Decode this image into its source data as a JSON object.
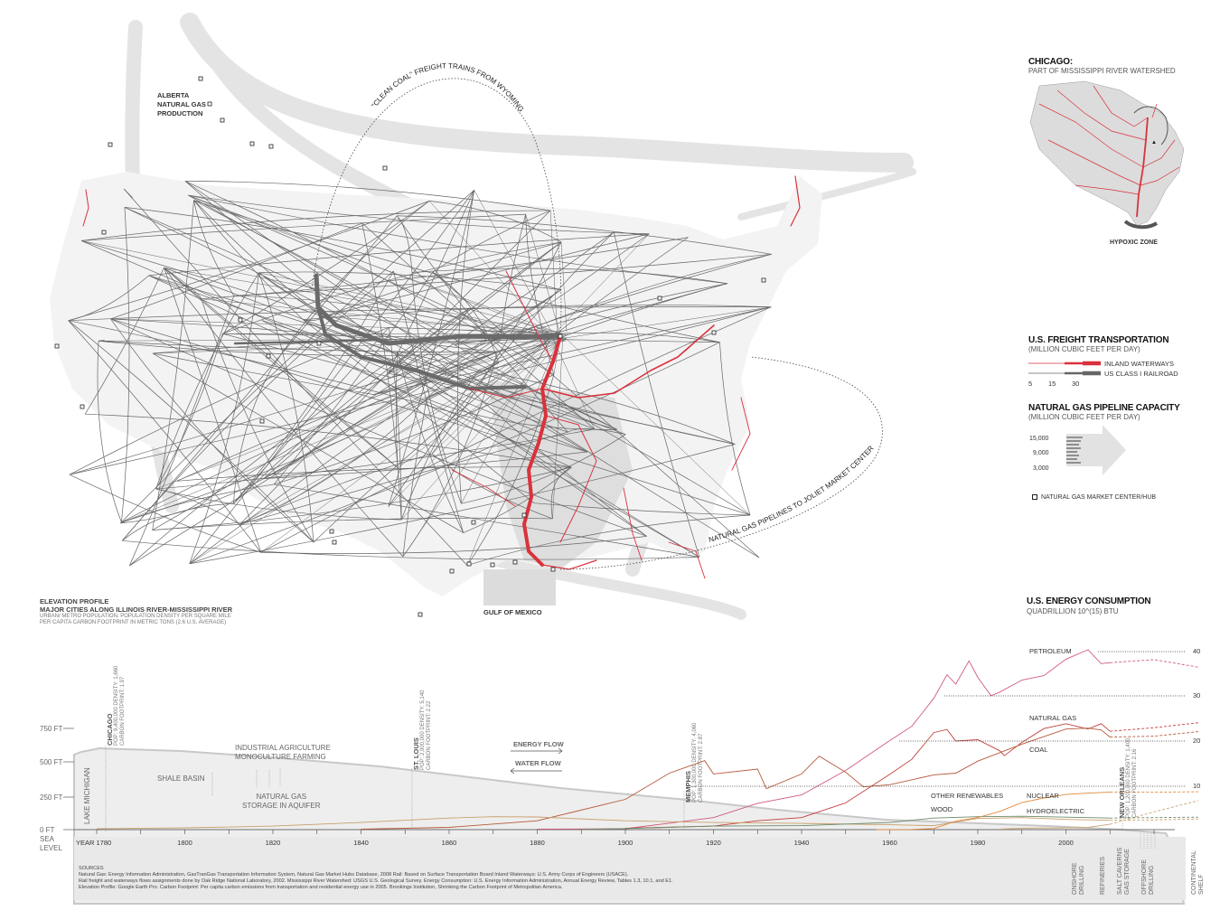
{
  "map": {
    "alberta_label": [
      "ALBERTA",
      "NATURAL GAS",
      "PRODUCTION"
    ],
    "coal_arc_label": "\"CLEAN COAL\" FREIGHT TRAINS FROM WYOMING",
    "pipeline_arc_label": "NATURAL GAS PIPELINES TO JOLIET MARKET CENTER",
    "gulf_label": "GULF OF MEXICO",
    "colors": {
      "waterway": "#d9323c",
      "rail": "#555555",
      "land": "#e6e6e6"
    }
  },
  "inset": {
    "title": "CHICAGO:",
    "subtitle": "PART OF MISSISSIPPI RIVER WATERSHED",
    "hypoxic_label": "HYPOXIC ZONE"
  },
  "freight_legend": {
    "title": "U.S. FREIGHT TRANSPORTATION",
    "subtitle": "(MILLION CUBIC FEET PER DAY)",
    "waterways_label": "INLAND WATERWAYS",
    "rail_label": "US CLASS I RAILROAD",
    "scale": [
      "5",
      "15",
      "30"
    ]
  },
  "gas_legend": {
    "title": "NATURAL GAS PIPELINE CAPACITY",
    "subtitle": "(MILLION CUBIC FEET PER DAY)",
    "scale": [
      "15,000",
      "9,000",
      "3,000"
    ],
    "hub_label": "NATURAL GAS MARKET CENTER/HUB"
  },
  "elevation": {
    "title": "ELEVATION PROFILE",
    "subtitle": "MAJOR CITIES ALONG ILLINOIS RIVER-MISSISSIPPI RIVER",
    "note1": "URBAN/ METRO POPULATION. POPULATION DENSITY PER SQUARE MILE",
    "note2": "PER CAPITA CARBON FOOTPRINT IN METRIC TONS (2.6 U.S. AVERAGE)",
    "y_ticks": [
      "750 FT",
      "500 FT",
      "250 FT",
      "0 FT"
    ],
    "sea_level": [
      "SEA",
      "LEVEL"
    ],
    "lake": "LAKE MICHIGAN",
    "shale": "SHALE BASIN",
    "agri": [
      "INDUSTRIAL AGRICULTURE",
      "MONOCULTURE FARMING"
    ],
    "gas_storage": [
      "NATURAL GAS",
      "STORAGE IN AQUIFER"
    ],
    "energy_flow": "ENERGY FLOW",
    "water_flow": "WATER FLOW",
    "cities": [
      {
        "name": "CHICAGO",
        "stats": "POP: 9,400,000  DENSITY: 1,660",
        "carbon": "CARBON FOOTPRINT: 1.97"
      },
      {
        "name": "ST. LOUIS",
        "stats": "POP: 2,900,000  DENSITY: 5,140",
        "carbon": "CARBON FOOTPRINT: 2.22"
      },
      {
        "name": "MEMPHIS",
        "stats": "POP: 1,300,000  DENSITY: 4,060",
        "carbon": "CARBON FOOTPRINT: 2.87"
      },
      {
        "name": "NEW ORLEANS",
        "stats": "POP: 1,200,000  DENSITY: 1,400",
        "carbon": "CARBON FOOTPRINT: 2.16"
      }
    ],
    "bottom_labels": [
      "ONSHORE DRILLING",
      "REFINERIES",
      "SALT CAVERNS GAS STORAGE",
      "OFFSHORE DRILLING",
      "CONTINENTAL SHELF"
    ]
  },
  "chart_data": {
    "type": "line",
    "title": "U.S. ENERGY CONSUMPTION",
    "subtitle": "QUADRILLION  10^(15) BTU",
    "x_ticks": [
      "YEAR 1780",
      "1800",
      "1820",
      "1840",
      "1860",
      "1880",
      "1900",
      "1920",
      "1940",
      "1960",
      "1980",
      "2000"
    ],
    "xlim": [
      1780,
      2030
    ],
    "ylim": [
      0,
      42
    ],
    "y_ticks": [
      "10",
      "20",
      "30",
      "40"
    ],
    "series": [
      {
        "name": "PETROLEUM",
        "color": "#d05a7a",
        "x": [
          1880,
          1900,
          1920,
          1930,
          1940,
          1950,
          1960,
          1965,
          1970,
          1973,
          1975,
          1978,
          1980,
          1983,
          1985,
          1990,
          1995,
          2000,
          2005,
          2008,
          2010,
          2020,
          2030
        ],
        "values": [
          0.1,
          0.2,
          2.7,
          5.9,
          7.8,
          13.3,
          20,
          23.2,
          29.5,
          34.8,
          32.7,
          37.9,
          34.2,
          30.1,
          30.9,
          33.6,
          34.6,
          38.3,
          40.4,
          37.3,
          37.5,
          38.2,
          36.5
        ]
      },
      {
        "name": "NATURAL GAS",
        "color": "#c2403a",
        "x": [
          1900,
          1920,
          1930,
          1940,
          1950,
          1960,
          1965,
          1970,
          1973,
          1975,
          1980,
          1985,
          1986,
          1990,
          1995,
          2000,
          2005,
          2008,
          2010,
          2020,
          2030
        ],
        "values": [
          0.3,
          0.8,
          2,
          2.7,
          6,
          12.4,
          15.8,
          21.8,
          22.5,
          19.9,
          20.2,
          17.7,
          16.6,
          19.6,
          22.7,
          23.8,
          22.6,
          23.8,
          22.1,
          22.9,
          24
        ]
      },
      {
        "name": "COAL",
        "color": "#b55a3a",
        "x": [
          1840,
          1860,
          1880,
          1900,
          1910,
          1918,
          1920,
          1930,
          1932,
          1940,
          1944,
          1950,
          1954,
          1960,
          1970,
          1975,
          1980,
          1990,
          2000,
          2005,
          2008,
          2010,
          2020,
          2030
        ],
        "values": [
          0.1,
          0.5,
          2,
          6.8,
          12.7,
          15.5,
          12.5,
          13.6,
          9.2,
          12.5,
          16.5,
          12.9,
          9.6,
          10.1,
          12.3,
          12.7,
          15.4,
          19.2,
          22.6,
          22.8,
          22.4,
          20.8,
          21,
          22
        ]
      },
      {
        "name": "WOOD",
        "color": "#c9a06a",
        "x": [
          1780,
          1800,
          1820,
          1840,
          1860,
          1870,
          1880,
          1900,
          1920,
          1940,
          1960,
          1970,
          1980,
          1990,
          2000,
          2010,
          2020,
          2030
        ],
        "values": [
          0.2,
          0.4,
          0.8,
          1.6,
          2.6,
          2.9,
          2.85,
          2,
          1.6,
          1.4,
          1.1,
          0.9,
          2.5,
          2.7,
          2.3,
          2.1,
          2.2,
          2.4
        ]
      },
      {
        "name": "HYDROELECTRIC",
        "color": "#6a8a6a",
        "x": [
          1890,
          1900,
          1920,
          1940,
          1960,
          1970,
          1980,
          1990,
          2000,
          2010,
          2020,
          2030
        ],
        "values": [
          0,
          0.25,
          0.8,
          0.9,
          1.6,
          2.6,
          2.9,
          3.0,
          2.8,
          2.6,
          2.7,
          2.8
        ]
      },
      {
        "name": "NUCLEAR",
        "color": "#e0883a",
        "x": [
          1957,
          1965,
          1970,
          1975,
          1980,
          1985,
          1990,
          1995,
          2000,
          2005,
          2010,
          2020,
          2030
        ],
        "values": [
          0,
          0.04,
          0.24,
          1.9,
          2.7,
          4.1,
          6.1,
          7.1,
          7.9,
          8.2,
          8.4,
          8.4,
          8.5
        ]
      },
      {
        "name": "OTHER RENEWABLES",
        "color": "#c8a878",
        "x": [
          1985,
          1990,
          2000,
          2005,
          2010,
          2020,
          2030
        ],
        "values": [
          0.1,
          0.3,
          0.4,
          0.5,
          1.2,
          4,
          6.5
        ]
      }
    ]
  },
  "sources": {
    "heading": "SOURCES",
    "lines": [
      "Natural Gas: Energy Information Administration, GasTranGas Transportation Information System, Natural Gas Market Hubs Database, 2008  Rail: Based on Surface Transportation Board  Inland Waterways: U.S. Army Corps of Engineers (USACE).",
      "Rail freight and waterways flows assignments done by Oak Ridge National Laboratory, 2002.  Mississippi River Watershed: USGS U.S. Geological Survey.  Energy Consumption: U.S. Energy Information Administration, Annual Energy Review, Tables 1.3, 10.1, and E1.",
      "Elevation Profile: Google Earth Pro.  Carbon Footprint:  Per capita carbon emissions from transportation and residential energy use in 2005.  Brookings Institution, Shrinking the Carbon Footprint of Metropolitan America."
    ]
  }
}
